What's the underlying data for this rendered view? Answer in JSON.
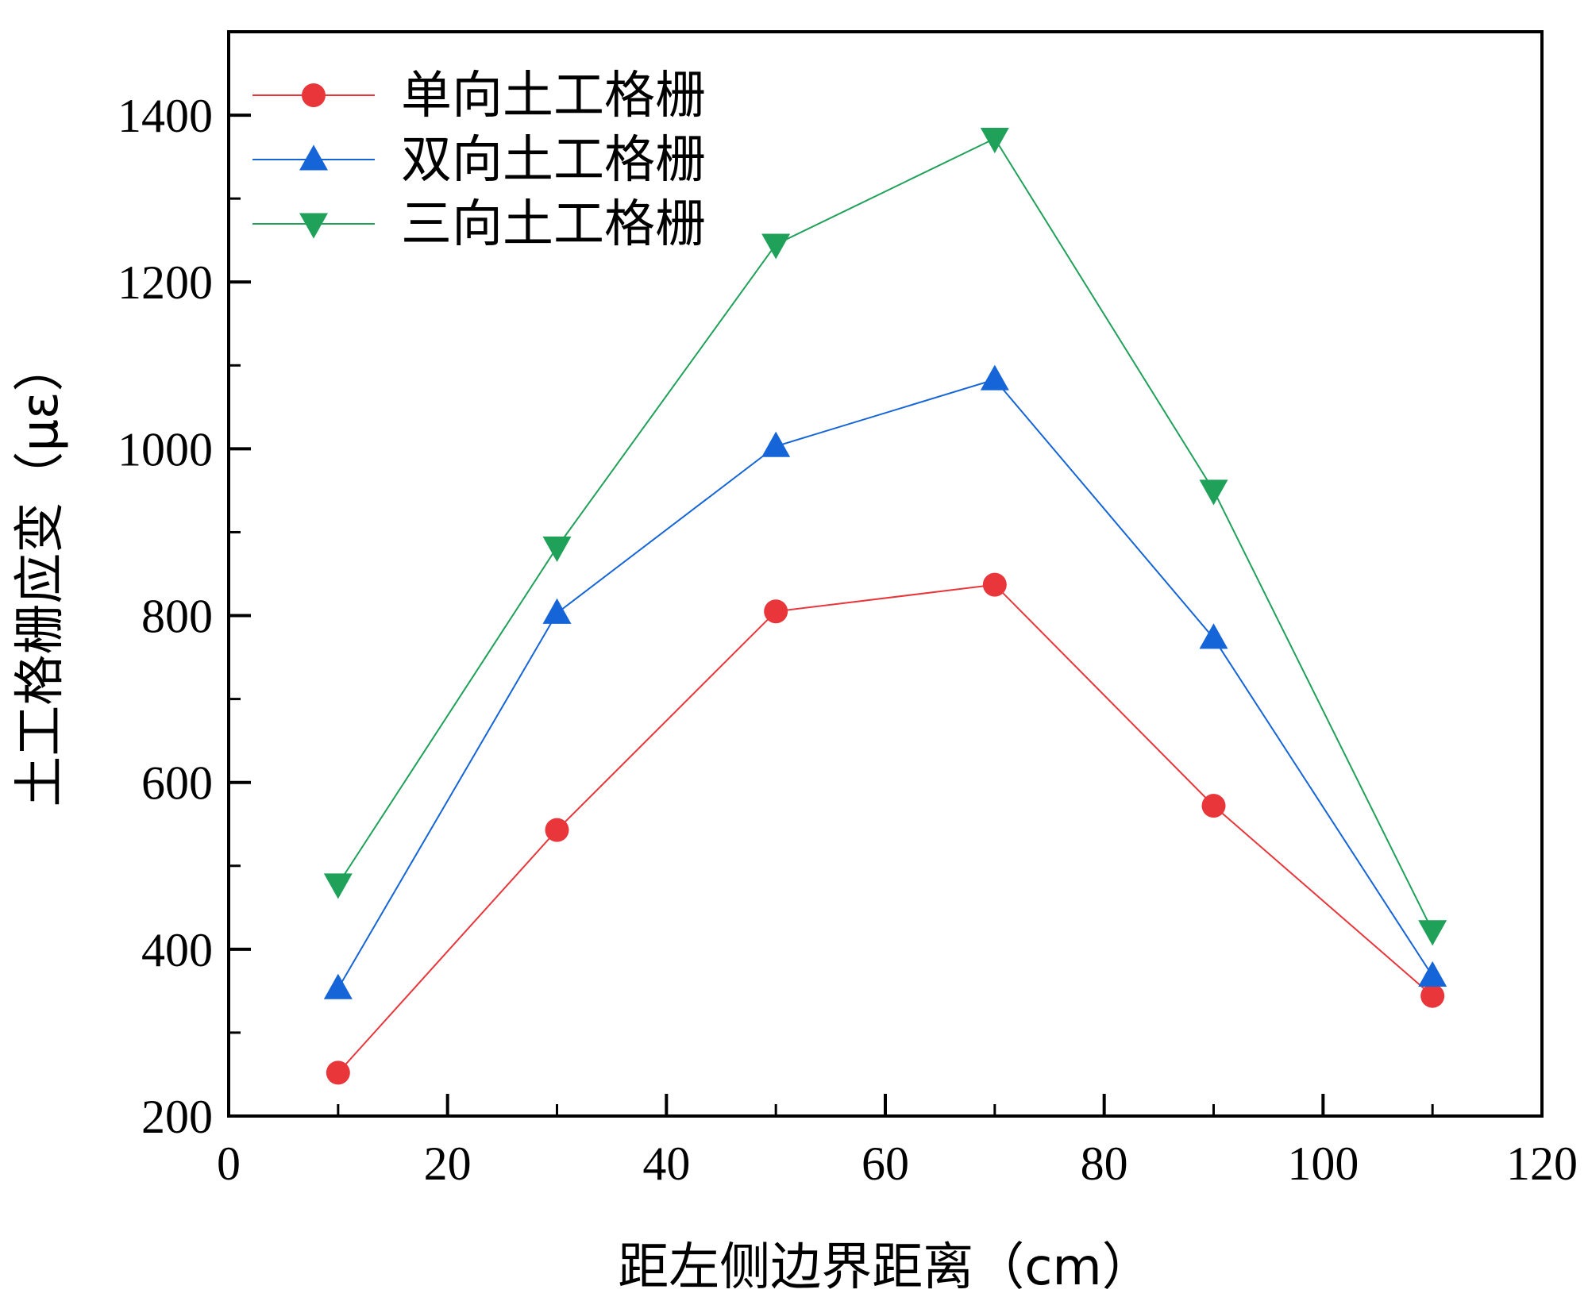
{
  "chart_data": {
    "type": "line",
    "xlabel": "距左侧边界距离（cm）",
    "ylabel": "土工格栅应变（με）",
    "xlim": [
      0,
      120
    ],
    "ylim": [
      200,
      1500
    ],
    "xticks": [
      0,
      20,
      40,
      60,
      80,
      100,
      120
    ],
    "yticks": [
      200,
      400,
      600,
      800,
      1000,
      1200,
      1400
    ],
    "xtick_labels": [
      "0",
      "20",
      "40",
      "60",
      "80",
      "100",
      "120"
    ],
    "ytick_labels": [
      "200",
      "400",
      "600",
      "800",
      "1000",
      "1200",
      "1400"
    ],
    "grid": false,
    "legend_position": "top-left",
    "x": [
      10,
      30,
      50,
      70,
      90,
      110
    ],
    "series": [
      {
        "name": "单向土工格栅",
        "values": [
          252,
          543,
          805,
          837,
          572,
          344
        ],
        "color": "#e8363b",
        "marker": "circle"
      },
      {
        "name": "双向土工格栅",
        "values": [
          353,
          803,
          1003,
          1083,
          773,
          368
        ],
        "color": "#1565d8",
        "marker": "triangle-up"
      },
      {
        "name": "三向土工格栅",
        "values": [
          478,
          882,
          1245,
          1372,
          950,
          422
        ],
        "color": "#20a15a",
        "marker": "triangle-down"
      }
    ]
  }
}
